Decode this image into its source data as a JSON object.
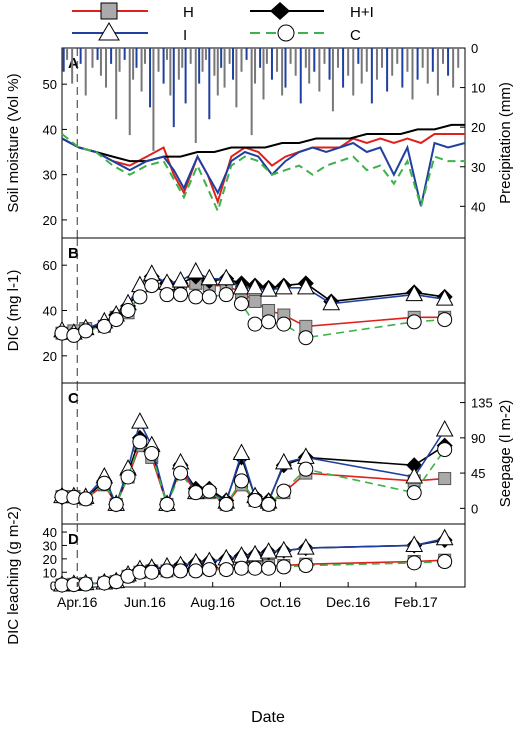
{
  "legend": [
    {
      "label": "H",
      "color": "#e0201b",
      "marker": "square",
      "fill": "#aaaaaa",
      "dash": false
    },
    {
      "label": "H+I",
      "color": "#000000",
      "marker": "diamond",
      "fill": "#000000",
      "dash": false
    },
    {
      "label": "I",
      "color": "#2040a0",
      "marker": "triangle",
      "fill": "#ffffff",
      "dash": false
    },
    {
      "label": "C",
      "color": "#3db14a",
      "marker": "circle",
      "fill": "#ffffff",
      "dash": true
    }
  ],
  "x_axis": {
    "title": "Date",
    "ticks": [
      "Apr.16",
      "Jun.16",
      "Aug.16",
      "Oct.16",
      "Dec.16",
      "Feb.17"
    ],
    "range_months": [
      0,
      11.9
    ],
    "marker_line_month": 0.45
  },
  "chart_data": [
    {
      "panel": "A",
      "type": "line",
      "ylabel": "Soil moisture (Vol %)",
      "yticks": [
        20,
        30,
        40,
        50
      ],
      "ylim": [
        16,
        58
      ],
      "right_axis": {
        "label": "Precipitation (mm)",
        "ticks": [
          0,
          10,
          20,
          30,
          40
        ],
        "ylim": [
          0,
          48
        ],
        "inverted": true
      },
      "precipitation": {
        "months": [
          0.05,
          0.15,
          0.3,
          0.55,
          0.7,
          0.9,
          1.05,
          1.15,
          1.3,
          1.45,
          1.6,
          1.7,
          1.85,
          2.0,
          2.1,
          2.2,
          2.35,
          2.45,
          2.6,
          2.7,
          2.85,
          3.0,
          3.1,
          3.2,
          3.3,
          3.45,
          3.55,
          3.65,
          3.8,
          3.95,
          4.05,
          4.15,
          4.25,
          4.35,
          4.5,
          4.6,
          4.7,
          4.8,
          4.95,
          5.05,
          5.15,
          5.3,
          5.45,
          5.6,
          5.7,
          5.85,
          5.95,
          6.05,
          6.2,
          6.35,
          6.5,
          6.6,
          6.75,
          6.9,
          7.05,
          7.2,
          7.3,
          7.45,
          7.6,
          7.75,
          7.9,
          8.0,
          8.15,
          8.3,
          8.45,
          8.6,
          8.75,
          8.85,
          9.0,
          9.15,
          9.3,
          9.45,
          9.6,
          9.75,
          9.9,
          10.05,
          10.2,
          10.35,
          10.5,
          10.65,
          10.8,
          10.95,
          11.1,
          11.25,
          11.4,
          11.55,
          11.7
        ],
        "values": [
          6,
          3,
          9,
          4,
          12,
          5,
          3,
          7,
          10,
          4,
          18,
          6,
          3,
          22,
          8,
          5,
          11,
          4,
          15,
          26,
          6,
          9,
          3,
          12,
          20,
          8,
          5,
          14,
          4,
          24,
          9,
          6,
          3,
          18,
          7,
          12,
          5,
          10,
          4,
          8,
          15,
          6,
          3,
          22,
          9,
          5,
          13,
          4,
          8,
          6,
          12,
          10,
          4,
          7,
          14,
          5,
          9,
          6,
          11,
          4,
          8,
          16,
          5,
          10,
          7,
          12,
          4,
          9,
          6,
          14,
          8,
          5,
          11,
          7,
          4,
          10,
          6,
          13,
          8,
          5,
          9,
          6,
          12,
          4,
          7,
          10,
          5
        ],
        "colors": [
          "#777777",
          "#2040a0"
        ]
      },
      "series": [
        {
          "name": "H",
          "color": "#e0201b",
          "x": [
            0,
            0.5,
            1,
            1.5,
            2,
            2.5,
            3,
            3.3,
            3.6,
            4,
            4.3,
            4.6,
            5,
            5.4,
            5.8,
            6.2,
            6.6,
            7,
            7.4,
            7.8,
            8.2,
            8.6,
            9,
            9.4,
            9.8,
            10.2,
            10.6,
            11,
            11.4,
            11.9
          ],
          "y": [
            38,
            36,
            35,
            33,
            32,
            34,
            36,
            30,
            26,
            34,
            30,
            24,
            34,
            36,
            35,
            32,
            34,
            35,
            36,
            36,
            36,
            38,
            37,
            38,
            37,
            38,
            37,
            39,
            39,
            39
          ]
        },
        {
          "name": "H+I",
          "color": "#000000",
          "x": [
            0,
            0.5,
            1,
            1.5,
            2,
            2.5,
            3,
            3.5,
            4,
            4.5,
            5,
            5.5,
            6,
            6.5,
            7,
            7.5,
            8,
            8.5,
            9,
            9.5,
            10,
            10.5,
            11,
            11.5,
            11.9
          ],
          "y": [
            38,
            36,
            35,
            34,
            33,
            33,
            34,
            34,
            35,
            35,
            36,
            36,
            36,
            37,
            37,
            38,
            38,
            38,
            39,
            39,
            39,
            40,
            40,
            41,
            41
          ]
        },
        {
          "name": "I",
          "color": "#2040a0",
          "x": [
            0,
            0.5,
            1,
            1.5,
            2,
            2.5,
            3,
            3.3,
            3.6,
            4,
            4.3,
            4.6,
            5,
            5.4,
            5.8,
            6.2,
            6.6,
            7,
            7.4,
            7.8,
            8.2,
            8.6,
            9,
            9.4,
            9.8,
            10.2,
            10.6,
            11,
            11.4,
            11.9
          ],
          "y": [
            38,
            36,
            35,
            33,
            31,
            33,
            34,
            31,
            27,
            34,
            30,
            26,
            33,
            35,
            34,
            30,
            33,
            35,
            36,
            35,
            36,
            37,
            35,
            36,
            30,
            36,
            23,
            37,
            36,
            37
          ]
        },
        {
          "name": "C",
          "color": "#3db14a",
          "x": [
            0,
            0.5,
            1,
            1.5,
            2,
            2.5,
            3,
            3.3,
            3.6,
            4,
            4.3,
            4.6,
            5,
            5.4,
            5.8,
            6.2,
            6.6,
            7,
            7.4,
            7.8,
            8.2,
            8.6,
            9,
            9.4,
            9.8,
            10.2,
            10.6,
            11,
            11.4,
            11.9
          ],
          "y": [
            39,
            36,
            35,
            32,
            30,
            32,
            33,
            29,
            25,
            32,
            27,
            22,
            32,
            34,
            33,
            30,
            31,
            32,
            30,
            32,
            33,
            34,
            31,
            32,
            28,
            33,
            23,
            34,
            33,
            33
          ]
        }
      ]
    },
    {
      "panel": "B",
      "type": "line",
      "ylabel": "DIC (mg l-1)",
      "yticks": [
        20,
        40,
        60
      ],
      "ylim": [
        8,
        72
      ],
      "series": [
        {
          "name": "H",
          "x": [
            0,
            0.35,
            0.7,
            1.25,
            1.6,
            1.95,
            2.3,
            2.65,
            3.1,
            3.5,
            3.95,
            4.35,
            4.85,
            5.3,
            5.7,
            6.1,
            6.55,
            7.2,
            10.4,
            11.3
          ],
          "y": [
            30,
            31,
            32,
            33,
            37,
            39,
            47,
            52,
            48,
            50,
            52,
            51,
            51,
            48,
            44,
            40,
            38,
            33,
            37,
            37
          ]
        },
        {
          "name": "H+I",
          "x": [
            0,
            0.35,
            0.7,
            1.25,
            1.6,
            1.95,
            2.3,
            2.65,
            3.1,
            3.5,
            3.95,
            4.35,
            4.85,
            5.3,
            5.7,
            6.1,
            6.55,
            7.2,
            7.95,
            10.4,
            11.3
          ],
          "y": [
            30,
            30,
            32,
            34,
            38,
            42,
            49,
            55,
            52,
            52,
            55,
            53,
            54,
            52,
            51,
            50,
            51,
            52,
            44,
            48,
            46
          ]
        },
        {
          "name": "I",
          "x": [
            0,
            0.35,
            0.7,
            1.25,
            1.6,
            1.95,
            2.3,
            2.65,
            3.1,
            3.5,
            3.95,
            4.35,
            4.85,
            5.3,
            5.7,
            6.1,
            6.55,
            7.2,
            7.95,
            10.4,
            11.3
          ],
          "y": [
            31,
            30,
            32,
            35,
            38,
            43,
            51,
            56,
            52,
            53,
            57,
            54,
            54,
            50,
            50,
            49,
            50,
            50,
            43,
            47,
            45
          ]
        },
        {
          "name": "C",
          "x": [
            0,
            0.35,
            0.7,
            1.25,
            1.6,
            1.95,
            2.3,
            2.65,
            3.1,
            3.5,
            3.95,
            4.35,
            4.85,
            5.3,
            5.7,
            6.1,
            6.55,
            7.2,
            10.4,
            11.3
          ],
          "y": [
            30,
            29,
            31,
            33,
            36,
            40,
            46,
            51,
            47,
            47,
            46,
            46,
            47,
            43,
            34,
            35,
            34,
            28,
            35,
            36
          ]
        }
      ]
    },
    {
      "panel": "C",
      "type": "line",
      "ylabel": "Seepage (l m-2)",
      "yticks": [
        0,
        45,
        90,
        135
      ],
      "ylim": [
        -20,
        160
      ],
      "series": [
        {
          "name": "H",
          "x": [
            0,
            0.35,
            0.7,
            1.25,
            1.6,
            1.95,
            2.3,
            2.65,
            3.1,
            3.5,
            3.95,
            4.35,
            4.85,
            5.3,
            5.7,
            6.1,
            6.55,
            7.2,
            10.4,
            11.3
          ],
          "y": [
            15,
            15,
            12,
            30,
            5,
            40,
            80,
            65,
            5,
            50,
            20,
            20,
            5,
            30,
            10,
            5,
            20,
            45,
            35,
            38
          ]
        },
        {
          "name": "H+I",
          "x": [
            0,
            0.35,
            0.7,
            1.25,
            1.6,
            1.95,
            2.3,
            2.65,
            3.1,
            3.5,
            3.95,
            4.35,
            4.85,
            5.3,
            5.7,
            6.1,
            6.55,
            7.2,
            10.4,
            11.3
          ],
          "y": [
            14,
            15,
            13,
            35,
            5,
            45,
            90,
            75,
            5,
            55,
            25,
            25,
            10,
            65,
            15,
            10,
            55,
            65,
            55,
            80
          ]
        },
        {
          "name": "I",
          "x": [
            0,
            0.35,
            0.7,
            1.25,
            1.6,
            1.95,
            2.3,
            2.65,
            3.1,
            3.5,
            3.95,
            4.35,
            4.85,
            5.3,
            5.7,
            6.1,
            6.55,
            7.2,
            10.4,
            11.3
          ],
          "y": [
            15,
            15,
            14,
            40,
            5,
            50,
            110,
            80,
            5,
            58,
            20,
            22,
            8,
            70,
            15,
            8,
            58,
            65,
            40,
            100
          ]
        },
        {
          "name": "C",
          "x": [
            0,
            0.35,
            0.7,
            1.25,
            1.6,
            1.95,
            2.3,
            2.65,
            3.1,
            3.5,
            3.95,
            4.35,
            4.85,
            5.3,
            5.7,
            6.1,
            6.55,
            7.2,
            10.4,
            11.3
          ],
          "y": [
            15,
            14,
            12,
            32,
            5,
            40,
            85,
            70,
            5,
            45,
            20,
            22,
            5,
            35,
            10,
            5,
            22,
            50,
            20,
            75
          ]
        }
      ]
    },
    {
      "panel": "D",
      "type": "line",
      "ylabel": "DIC leaching (g m-2)",
      "yticks": [
        0,
        10,
        20,
        30,
        40
      ],
      "ylim": [
        -1,
        46
      ],
      "series": [
        {
          "name": "H",
          "x": [
            0,
            0.35,
            0.7,
            1.25,
            1.6,
            1.95,
            2.3,
            2.65,
            3.1,
            3.5,
            3.95,
            4.35,
            4.85,
            5.3,
            5.7,
            6.1,
            6.55,
            7.2,
            10.4,
            11.3
          ],
          "y": [
            0.5,
            1,
            1.5,
            2,
            3,
            7,
            10,
            11,
            11,
            12,
            12,
            13,
            13,
            14,
            14,
            15,
            15,
            16,
            18,
            19
          ]
        },
        {
          "name": "H+I",
          "x": [
            0,
            0.35,
            0.7,
            1.25,
            1.6,
            1.95,
            2.3,
            2.65,
            3.1,
            3.5,
            3.95,
            4.35,
            4.85,
            5.3,
            5.7,
            6.1,
            6.55,
            7.2,
            10.4,
            11.3
          ],
          "y": [
            0.5,
            1,
            1.5,
            2,
            3,
            8,
            12,
            13,
            13,
            15,
            17,
            18,
            20,
            22,
            23,
            25,
            26,
            28,
            30,
            34
          ]
        },
        {
          "name": "I",
          "x": [
            0,
            0.35,
            0.7,
            1.25,
            1.6,
            1.95,
            2.3,
            2.65,
            3.1,
            3.5,
            3.95,
            4.35,
            4.85,
            5.3,
            5.7,
            6.1,
            6.55,
            7.2,
            10.4,
            11.3
          ],
          "y": [
            0.5,
            1,
            1.5,
            2,
            3,
            8,
            12,
            13,
            14,
            15,
            17,
            18,
            20,
            22,
            23,
            25,
            26,
            28,
            30,
            35
          ]
        },
        {
          "name": "C",
          "x": [
            0,
            0.35,
            0.7,
            1.25,
            1.6,
            1.95,
            2.3,
            2.65,
            3.1,
            3.5,
            3.95,
            4.35,
            4.85,
            5.3,
            5.7,
            6.1,
            6.55,
            7.2,
            10.4,
            11.3
          ],
          "y": [
            0.5,
            0.8,
            1.2,
            2,
            3,
            7,
            10,
            10,
            11,
            11,
            11,
            12,
            12,
            13,
            13,
            13,
            14,
            15,
            17,
            18
          ]
        }
      ]
    }
  ]
}
